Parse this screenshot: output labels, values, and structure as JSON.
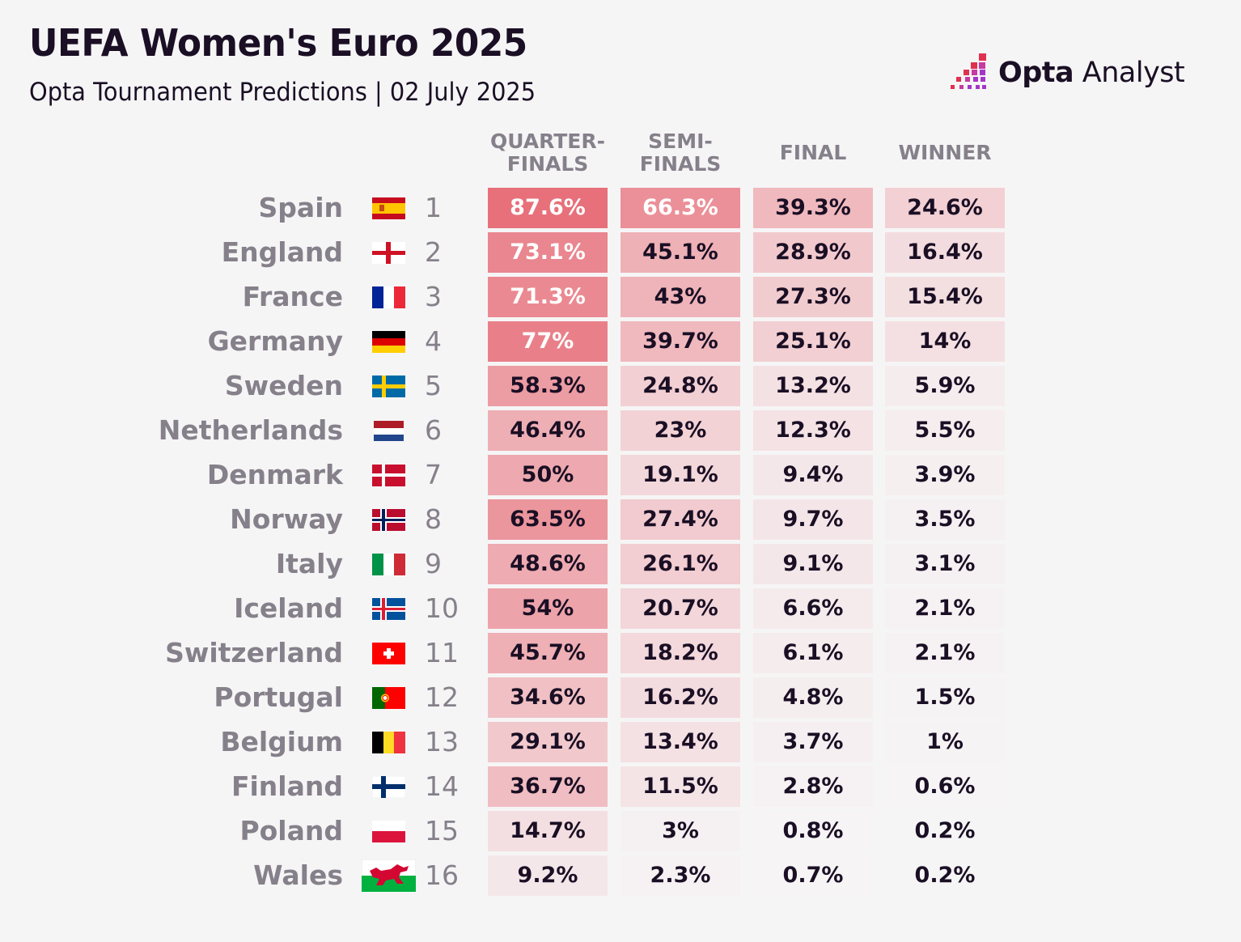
{
  "header": {
    "title": "UEFA Women's Euro 2025",
    "subtitle": "Opta Tournament Predictions | 02 July 2025"
  },
  "logo": {
    "brand_bold": "Opta",
    "brand_light": "Analyst"
  },
  "colors": {
    "background": "#f6f5f6",
    "heat_max": "#e7707a",
    "text_dark": "#1a0f24",
    "text_muted": "#85808a"
  },
  "columns": [
    {
      "key": "qf",
      "label": "QUARTER-\nFINALS"
    },
    {
      "key": "sf",
      "label": "SEMI-\nFINALS"
    },
    {
      "key": "final",
      "label": "FINAL"
    },
    {
      "key": "winner",
      "label": "WINNER"
    }
  ],
  "chart_data": {
    "type": "table",
    "title": "UEFA Women's Euro 2025",
    "subtitle": "Opta Tournament Predictions | 02 July 2025",
    "columns": [
      "Quarter-Finals",
      "Semi-Finals",
      "Final",
      "Winner"
    ],
    "unit": "%",
    "rows": [
      {
        "rank": 1,
        "team": "Spain",
        "flag": "spain",
        "values": [
          "87.6%",
          "66.3%",
          "39.3%",
          "24.6%"
        ]
      },
      {
        "rank": 2,
        "team": "England",
        "flag": "england",
        "values": [
          "73.1%",
          "45.1%",
          "28.9%",
          "16.4%"
        ]
      },
      {
        "rank": 3,
        "team": "France",
        "flag": "france",
        "values": [
          "71.3%",
          "43%",
          "27.3%",
          "15.4%"
        ]
      },
      {
        "rank": 4,
        "team": "Germany",
        "flag": "germany",
        "values": [
          "77%",
          "39.7%",
          "25.1%",
          "14%"
        ]
      },
      {
        "rank": 5,
        "team": "Sweden",
        "flag": "sweden",
        "values": [
          "58.3%",
          "24.8%",
          "13.2%",
          "5.9%"
        ]
      },
      {
        "rank": 6,
        "team": "Netherlands",
        "flag": "netherlands",
        "values": [
          "46.4%",
          "23%",
          "12.3%",
          "5.5%"
        ]
      },
      {
        "rank": 7,
        "team": "Denmark",
        "flag": "denmark",
        "values": [
          "50%",
          "19.1%",
          "9.4%",
          "3.9%"
        ]
      },
      {
        "rank": 8,
        "team": "Norway",
        "flag": "norway",
        "values": [
          "63.5%",
          "27.4%",
          "9.7%",
          "3.5%"
        ]
      },
      {
        "rank": 9,
        "team": "Italy",
        "flag": "italy",
        "values": [
          "48.6%",
          "26.1%",
          "9.1%",
          "3.1%"
        ]
      },
      {
        "rank": 10,
        "team": "Iceland",
        "flag": "iceland",
        "values": [
          "54%",
          "20.7%",
          "6.6%",
          "2.1%"
        ]
      },
      {
        "rank": 11,
        "team": "Switzerland",
        "flag": "switzerland",
        "values": [
          "45.7%",
          "18.2%",
          "6.1%",
          "2.1%"
        ]
      },
      {
        "rank": 12,
        "team": "Portugal",
        "flag": "portugal",
        "values": [
          "34.6%",
          "16.2%",
          "4.8%",
          "1.5%"
        ]
      },
      {
        "rank": 13,
        "team": "Belgium",
        "flag": "belgium",
        "values": [
          "29.1%",
          "13.4%",
          "3.7%",
          "1%"
        ]
      },
      {
        "rank": 14,
        "team": "Finland",
        "flag": "finland",
        "values": [
          "36.7%",
          "11.5%",
          "2.8%",
          "0.6%"
        ]
      },
      {
        "rank": 15,
        "team": "Poland",
        "flag": "poland",
        "values": [
          "14.7%",
          "3%",
          "0.8%",
          "0.2%"
        ]
      },
      {
        "rank": 16,
        "team": "Wales",
        "flag": "wales",
        "values": [
          "9.2%",
          "2.3%",
          "0.7%",
          "0.2%"
        ]
      }
    ]
  }
}
